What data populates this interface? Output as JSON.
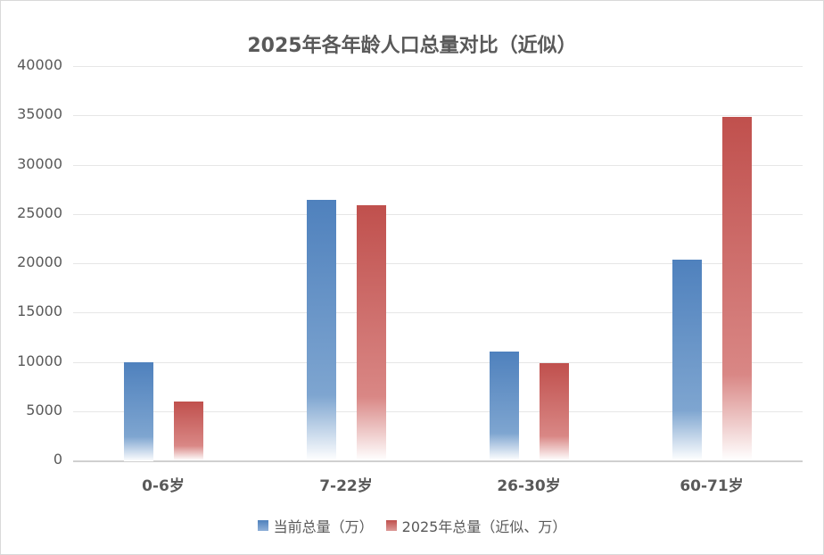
{
  "chart_data": {
    "type": "bar",
    "title": "2025年各年龄人口总量对比（近似）",
    "xlabel": "",
    "ylabel": "",
    "ylim": [
      0,
      40000
    ],
    "yticks": [
      "0",
      "5000",
      "10000",
      "15000",
      "20000",
      "25000",
      "30000",
      "35000",
      "40000"
    ],
    "grid": true,
    "legend_position": "bottom",
    "categories": [
      "0-6岁",
      "7-22岁",
      "26-30岁",
      "60-71岁"
    ],
    "series": [
      {
        "name": "当前总量（万）",
        "color": "#4f81bd",
        "values": [
          10000,
          26400,
          11000,
          20400
        ]
      },
      {
        "name": "2025年总量（近似、万）",
        "color": "#c0504d",
        "values": [
          6000,
          25900,
          9900,
          34800
        ]
      }
    ]
  }
}
